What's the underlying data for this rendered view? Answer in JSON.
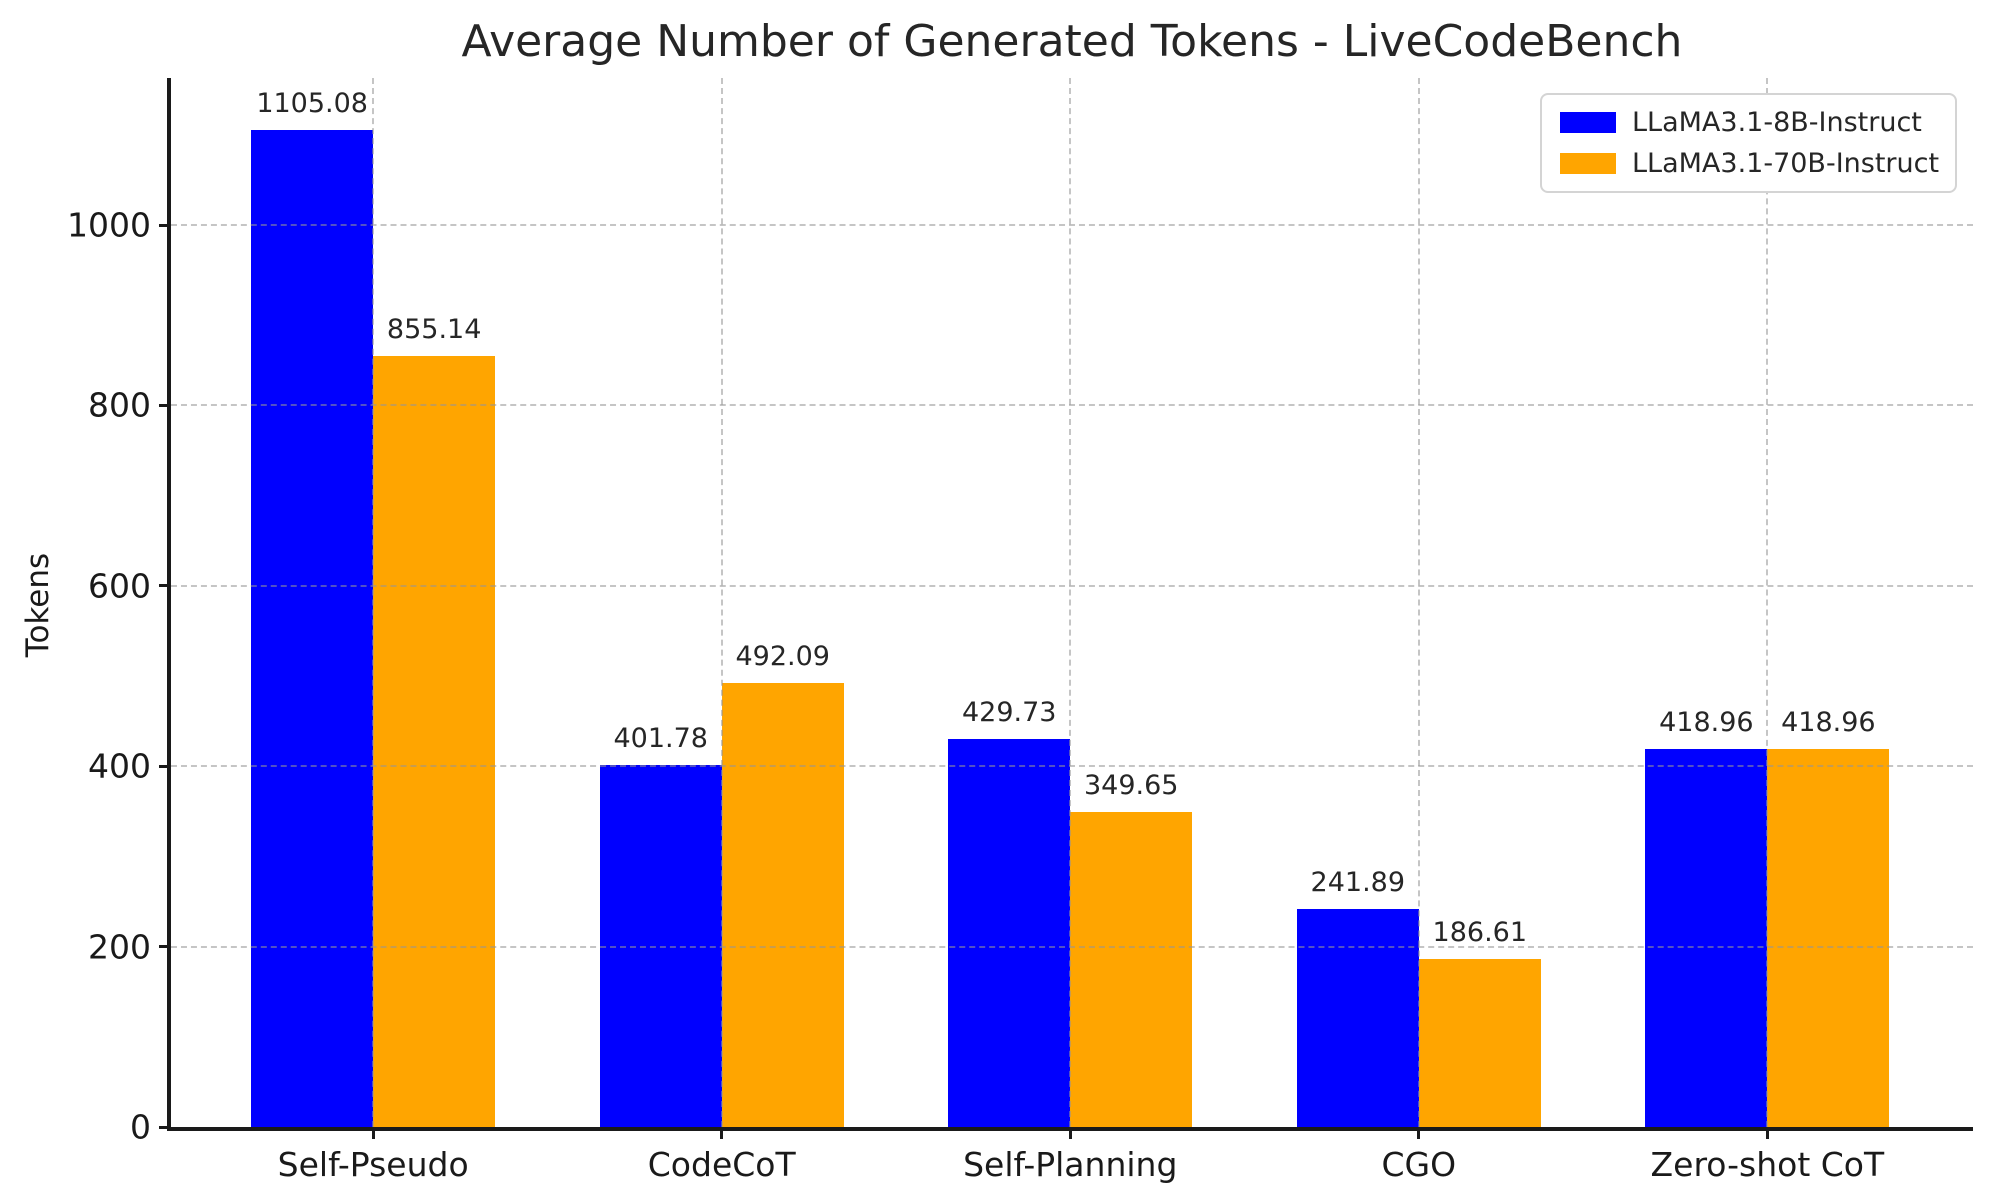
{
  "chart_data": {
    "type": "bar",
    "title": "Average Number of Generated Tokens - LiveCodeBench",
    "xlabel": "",
    "ylabel": "Tokens",
    "categories": [
      "Self-Pseudo",
      "CodeCoT",
      "Self-Planning",
      "CGO",
      "Zero-shot CoT"
    ],
    "series": [
      {
        "name": "LLaMA3.1-8B-Instruct",
        "color": "#0000ff",
        "values": [
          1105.08,
          401.78,
          429.73,
          241.89,
          418.96
        ],
        "labels": [
          "1105.08",
          "401.78",
          "429.73",
          "241.89",
          "418.96"
        ]
      },
      {
        "name": "LLaMA3.1-70B-Instruct",
        "color": "#ffa500",
        "values": [
          855.14,
          492.09,
          349.65,
          186.61,
          418.96
        ],
        "labels": [
          "855.14",
          "492.09",
          "349.65",
          "186.61",
          "418.96"
        ]
      }
    ],
    "yticks": [
      0,
      200,
      400,
      600,
      800,
      1000
    ],
    "ylim": [
      0,
      1163
    ],
    "grid": "both, dashed, drawn over bars",
    "legend_position": "upper right",
    "spine_color": "#1a1a1a",
    "grid_color": "#c8c8c8"
  }
}
